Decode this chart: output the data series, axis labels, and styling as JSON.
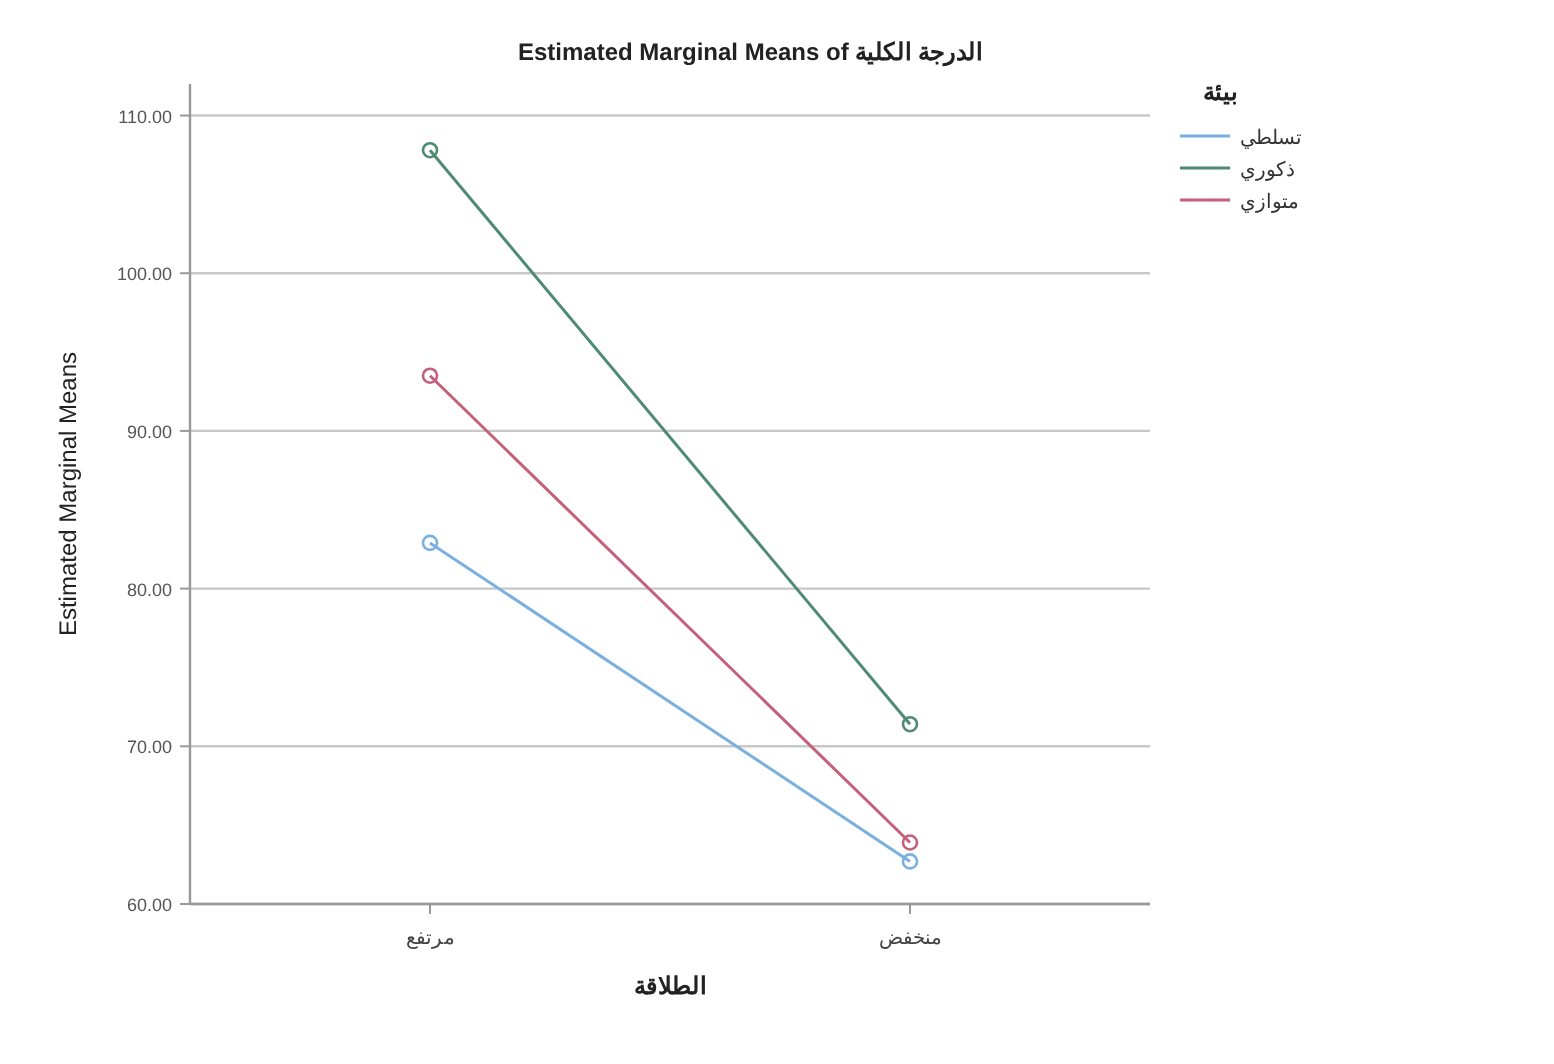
{
  "chart_data": {
    "type": "line",
    "title": "Estimated Marginal Means of الدرجة الكلية",
    "xlabel": "الطلاقة",
    "ylabel": "Estimated Marginal Means",
    "legend_title": "بيئة",
    "categories": [
      "مرتفع",
      "منخفض"
    ],
    "series": [
      {
        "name": "تسلطي",
        "color": "#79b0e0",
        "values": [
          82.9,
          62.7
        ]
      },
      {
        "name": "ذكوري",
        "color": "#4f8a73",
        "values": [
          107.8,
          71.4
        ]
      },
      {
        "name": "متوازي",
        "color": "#c4607a",
        "values": [
          93.5,
          63.9
        ]
      }
    ],
    "ylim": [
      60,
      112
    ],
    "yticks": [
      {
        "value": 60,
        "label": "60.00"
      },
      {
        "value": 70,
        "label": "70.00"
      },
      {
        "value": 80,
        "label": "80.00"
      },
      {
        "value": 90,
        "label": "90.00"
      },
      {
        "value": 100,
        "label": "100.00"
      },
      {
        "value": 110,
        "label": "110.00"
      }
    ],
    "grid": "y",
    "legend": "top right",
    "marker": "circle",
    "line_style": "solid"
  }
}
